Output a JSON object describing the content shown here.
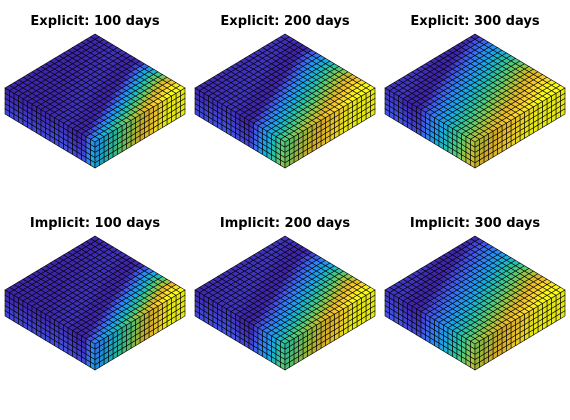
{
  "figure": {
    "panels": [
      {
        "title": "Explicit: 100 days",
        "scheme": "explicit",
        "time_days": 100
      },
      {
        "title": "Explicit: 200 days",
        "scheme": "explicit",
        "time_days": 200
      },
      {
        "title": "Explicit: 300 days",
        "scheme": "explicit",
        "time_days": 300
      },
      {
        "title": "Implicit: 100 days",
        "scheme": "implicit",
        "time_days": 100
      },
      {
        "title": "Implicit: 200 days",
        "scheme": "implicit",
        "time_days": 200
      },
      {
        "title": "Implicit: 300 days",
        "scheme": "implicit",
        "time_days": 300
      }
    ],
    "grid": {
      "nx": 20,
      "ny": 20,
      "nz": 5
    },
    "colormap": [
      "#3e26a8",
      "#4352e5",
      "#2d84f5",
      "#17a9e3",
      "#24c0aa",
      "#5cca73",
      "#a9c43a",
      "#e6b728",
      "#fdd62d",
      "#f9fb14"
    ],
    "edge_color": "#000000"
  }
}
